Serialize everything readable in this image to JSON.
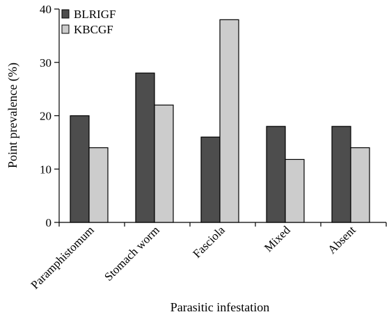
{
  "chart_data": {
    "type": "bar",
    "title": "",
    "xlabel": "Parasitic infestation",
    "ylabel": "Point prevalence (%)",
    "ylim": [
      0,
      40
    ],
    "yticks": [
      0,
      10,
      20,
      30,
      40
    ],
    "categories": [
      "Paramphistomum",
      "Stomach worm",
      "Fasciola",
      "Mixed",
      "Absent"
    ],
    "series": [
      {
        "name": "BLRIGF",
        "color": "#4d4d4d",
        "values": [
          20,
          28,
          16,
          18,
          18
        ]
      },
      {
        "name": "KBCGF",
        "color": "#cccccc",
        "values": [
          14,
          22,
          38,
          11.8,
          14
        ]
      }
    ],
    "legend_position": "top-left",
    "grid": false
  }
}
